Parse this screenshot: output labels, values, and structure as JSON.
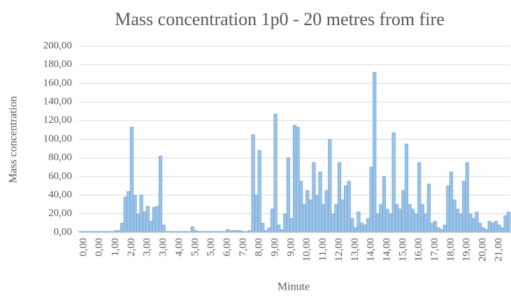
{
  "chart_data": {
    "type": "bar",
    "title": "Mass concentration 1p0 - 20 metres from fire",
    "x_label": "Minute",
    "y_label": "Mass concentration",
    "color": "#9dc3e6",
    "edge_color": "#5b9bd5",
    "grid": true,
    "ylim": [
      0,
      200
    ],
    "yticks": [
      {
        "value": 0,
        "label": "0,00"
      },
      {
        "value": 20,
        "label": "20,00"
      },
      {
        "value": 40,
        "label": "40,00"
      },
      {
        "value": 60,
        "label": "60,00"
      },
      {
        "value": 80,
        "label": "80,00"
      },
      {
        "value": 100,
        "label": "100,00"
      },
      {
        "value": 120,
        "label": "120,00"
      },
      {
        "value": 140,
        "label": "140,00"
      },
      {
        "value": 160,
        "label": "160,00"
      },
      {
        "value": 180,
        "label": "180,00"
      },
      {
        "value": 200,
        "label": "200,00"
      }
    ],
    "categories": [
      null,
      "0,00",
      null,
      null,
      null,
      null,
      "0,00",
      null,
      null,
      null,
      null,
      "1,00",
      null,
      null,
      null,
      null,
      "2,00",
      null,
      null,
      null,
      null,
      "3,00",
      null,
      null,
      null,
      null,
      "3,00",
      null,
      null,
      null,
      null,
      "4,00",
      null,
      null,
      null,
      null,
      "5,00",
      null,
      null,
      null,
      null,
      "5,00",
      null,
      null,
      null,
      null,
      "6,00",
      null,
      null,
      null,
      null,
      "7,00",
      null,
      null,
      null,
      null,
      "8,00",
      null,
      null,
      null,
      null,
      "9,00",
      null,
      null,
      null,
      null,
      "9,00",
      null,
      null,
      null,
      null,
      "10,00",
      null,
      null,
      null,
      null,
      "11,00",
      null,
      null,
      null,
      null,
      "12,00",
      null,
      null,
      null,
      null,
      "13,00",
      null,
      null,
      null,
      null,
      "14,00",
      null,
      null,
      null,
      null,
      "14,00",
      null,
      null,
      null,
      null,
      "15,00",
      null,
      null,
      null,
      null,
      "16,00",
      null,
      null,
      null,
      null,
      "17,00",
      null,
      null,
      null,
      null,
      "18,00",
      null,
      null,
      null,
      null,
      "19,00",
      null,
      null,
      null,
      null,
      "20,00",
      null,
      null,
      null,
      null,
      "21,00",
      null,
      null,
      null
    ],
    "values": [
      1,
      1,
      1,
      1,
      1,
      1,
      1,
      1,
      1,
      1,
      1,
      2,
      2,
      10,
      38,
      44,
      113,
      40,
      20,
      40,
      22,
      28,
      12,
      27,
      28,
      82,
      8,
      1,
      1,
      1,
      1,
      1,
      1,
      1,
      1,
      6,
      2,
      1,
      1,
      1,
      1,
      1,
      1,
      1,
      1,
      1,
      3,
      2,
      2,
      2,
      2,
      1,
      1,
      2,
      105,
      40,
      88,
      10,
      2,
      5,
      25,
      127,
      8,
      3,
      20,
      80,
      15,
      115,
      113,
      55,
      30,
      45,
      35,
      75,
      40,
      65,
      30,
      45,
      100,
      20,
      30,
      75,
      35,
      50,
      55,
      15,
      5,
      22,
      10,
      8,
      15,
      70,
      172,
      20,
      30,
      60,
      25,
      20,
      107,
      30,
      25,
      45,
      95,
      30,
      25,
      20,
      75,
      30,
      20,
      52,
      10,
      12,
      5,
      3,
      8,
      50,
      65,
      35,
      25,
      20,
      55,
      75,
      20,
      15,
      22,
      10,
      5,
      3,
      12,
      10,
      12,
      8,
      5,
      18,
      22
    ]
  }
}
